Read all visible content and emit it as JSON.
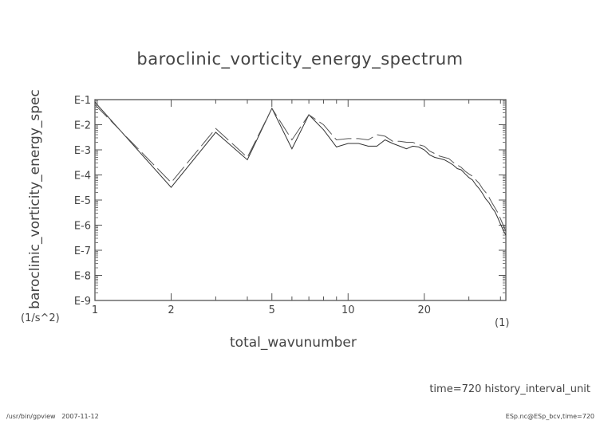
{
  "chart_data": {
    "type": "line",
    "title": "baroclinic_vorticity_energy_spectrum",
    "xlabel": "total_wavunumber",
    "xunit": "(1)",
    "ylabel": "baroclinic_vorticity_energy_spec",
    "yunit": "(1/s^2)",
    "xscale": "log",
    "yscale": "log",
    "xlim": [
      1,
      42
    ],
    "ylim": [
      1e-09,
      0.1
    ],
    "x_tick_labels": [
      "1",
      "2",
      "5",
      "10",
      "20"
    ],
    "x_ticks": [
      1,
      2,
      5,
      10,
      20
    ],
    "y_tick_labels": [
      "E-1",
      "E-2",
      "E-3",
      "E-4",
      "E-5",
      "E-6",
      "E-7",
      "E-8",
      "E-9"
    ],
    "grid": false,
    "x": [
      1,
      2,
      3,
      4,
      5,
      6,
      7,
      8,
      9,
      10,
      11,
      12,
      13,
      14,
      15,
      16,
      17,
      18,
      19,
      20,
      21,
      22,
      23,
      24,
      25,
      26,
      27,
      28,
      29,
      30,
      31,
      32,
      33,
      34,
      35,
      36,
      37,
      38,
      39,
      40,
      41,
      42
    ],
    "series": [
      {
        "style": "solid",
        "color": "#333333",
        "values": [
          0.079,
          3.2e-05,
          0.005,
          0.0004,
          0.045,
          0.0011,
          0.025,
          0.0063,
          0.0013,
          0.0018,
          0.0018,
          0.0014,
          0.0014,
          0.0025,
          0.0018,
          0.0014,
          0.0011,
          0.0014,
          0.0013,
          0.001,
          0.00063,
          0.0005,
          0.00045,
          0.0004,
          0.00032,
          0.00025,
          0.00018,
          0.00016,
          0.00011,
          7.9e-05,
          6.3e-05,
          4e-05,
          2.8e-05,
          1.8e-05,
          1.1e-05,
          7.9e-06,
          5e-06,
          3.5e-06,
          2e-06,
          1.1e-06,
          6.3e-07,
          4e-07
        ]
      },
      {
        "style": "dashed",
        "color": "#555555",
        "values": [
          0.063,
          5e-05,
          0.0071,
          0.0005,
          0.045,
          0.0025,
          0.025,
          0.01,
          0.0025,
          0.0028,
          0.0028,
          0.0025,
          0.004,
          0.0035,
          0.0022,
          0.0022,
          0.002,
          0.002,
          0.0016,
          0.0014,
          0.00089,
          0.00071,
          0.00056,
          0.0005,
          0.00045,
          0.00032,
          0.00025,
          0.0002,
          0.00014,
          0.00011,
          8.9e-05,
          6.3e-05,
          4.5e-05,
          2.8e-05,
          2e-05,
          1.3e-05,
          7.9e-06,
          5e-06,
          3.2e-06,
          1.8e-06,
          1e-06,
          5.6e-07
        ]
      }
    ]
  },
  "annotations": {
    "time": "time=720 history_interval_unit",
    "footer_left": "/usr/bin/gpview   2007-11-12",
    "footer_right": "ESp.nc@ESp_bcv,time=720"
  }
}
